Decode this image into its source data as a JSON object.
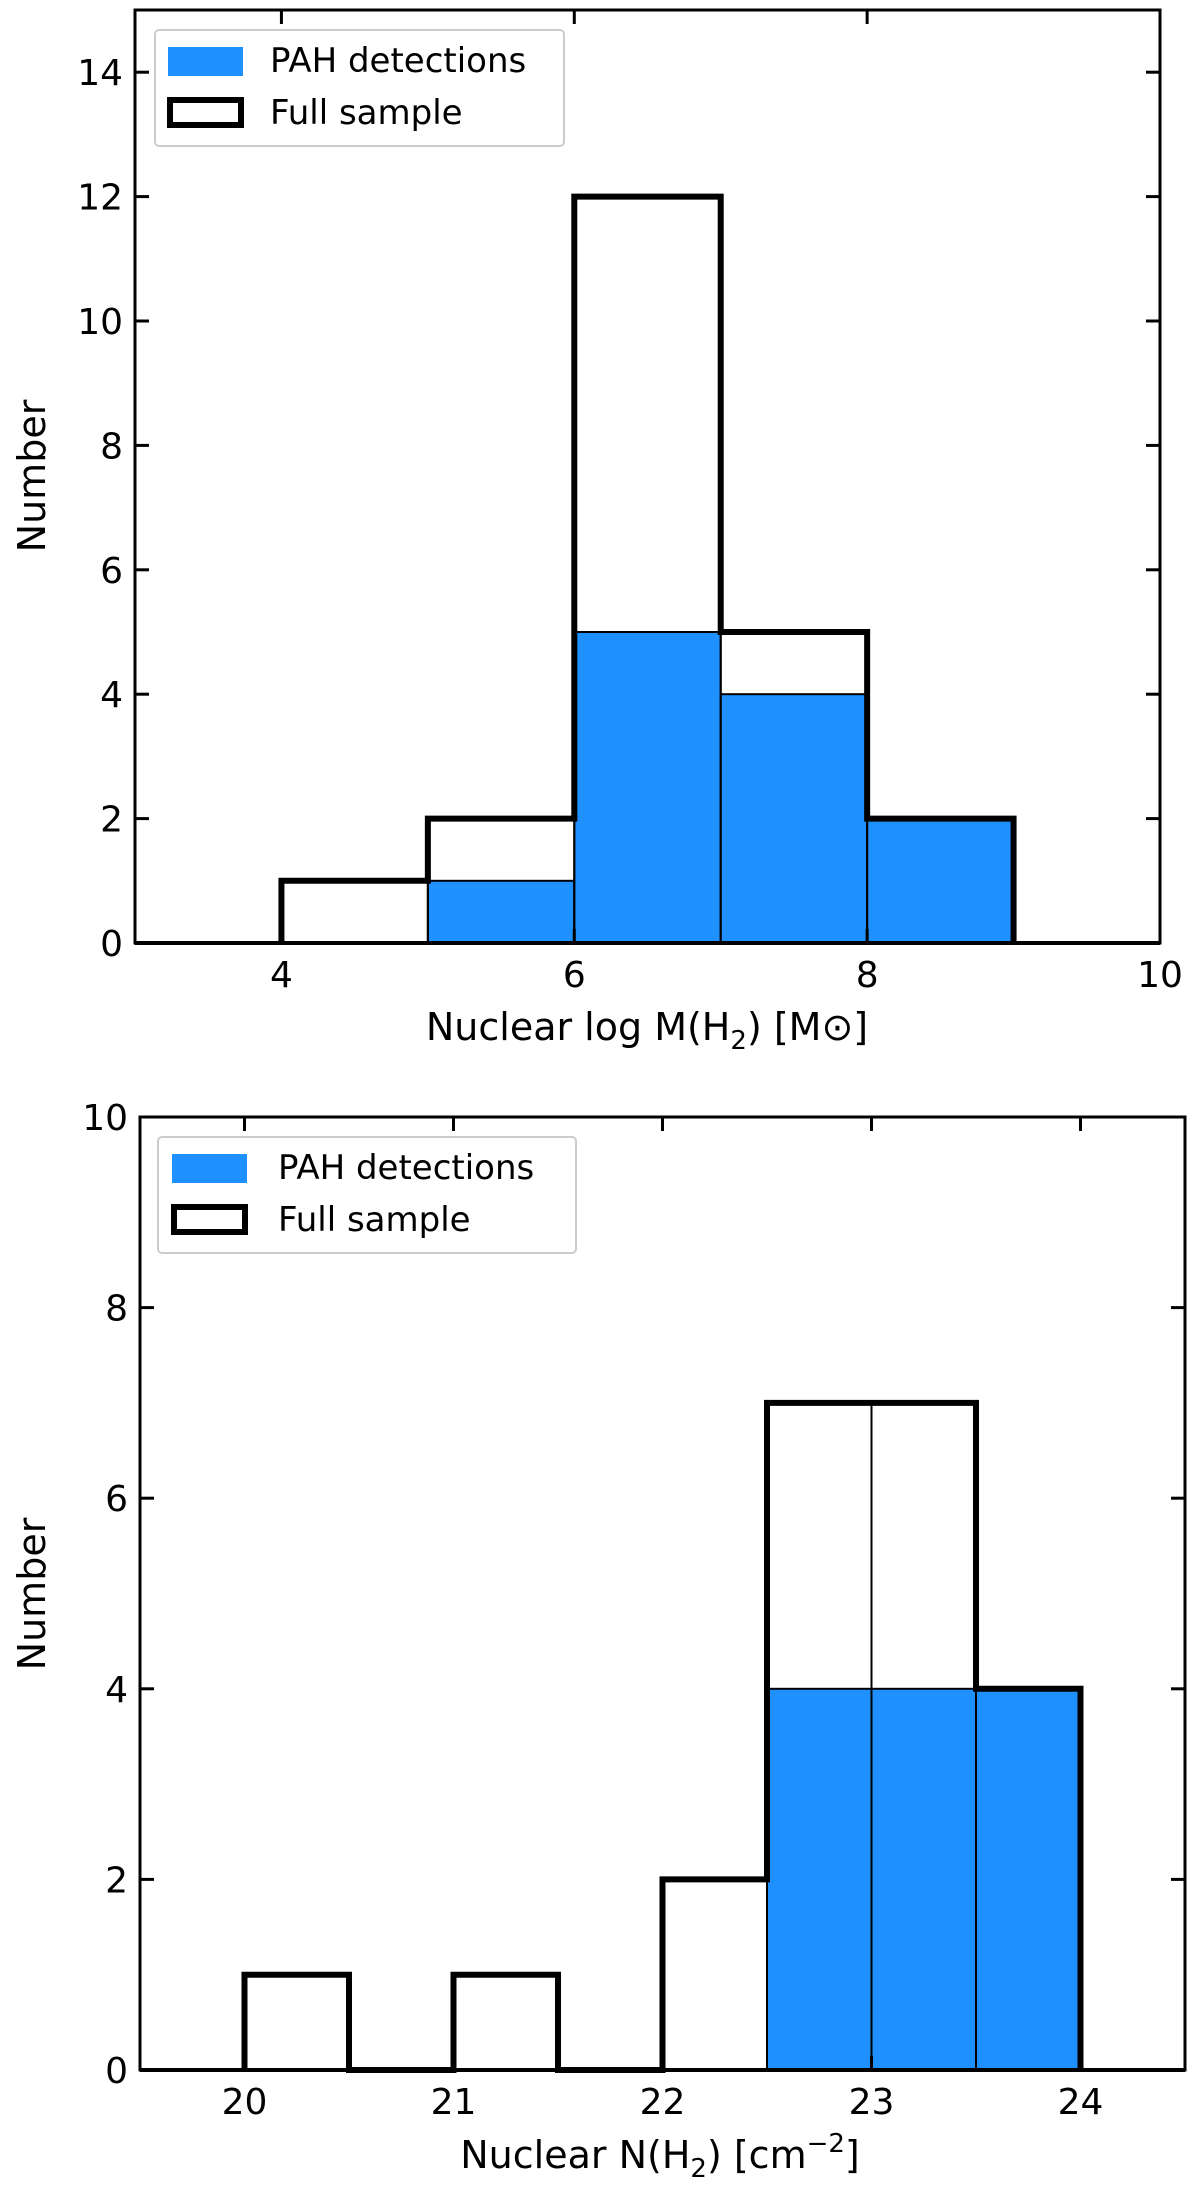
{
  "colors": {
    "pah_fill": "#1e90ff",
    "outline": "#000000",
    "background": "#ffffff",
    "legend_border": "#cccccc"
  },
  "chart_data": [
    {
      "type": "bar",
      "subtype": "histogram",
      "title": "",
      "xlabel": "Nuclear log M(H",
      "xlabel_sub": "2",
      "xlabel_suffix": ") [M⊙]",
      "ylabel": "Number",
      "xlim": [
        3,
        10
      ],
      "ylim": [
        0,
        15
      ],
      "xticks": [
        4,
        6,
        8,
        10
      ],
      "yticks": [
        0,
        2,
        4,
        6,
        8,
        10,
        12,
        14
      ],
      "bin_edges": [
        4,
        5,
        6,
        7,
        8,
        9
      ],
      "series": [
        {
          "name": "PAH detections",
          "style": "filled",
          "values": [
            0,
            1,
            5,
            4,
            2
          ]
        },
        {
          "name": "Full sample",
          "style": "step-outline",
          "values": [
            1,
            2,
            12,
            5,
            2
          ]
        }
      ],
      "legend": {
        "position": "top-left",
        "entries": [
          "PAH detections",
          "Full sample"
        ]
      }
    },
    {
      "type": "bar",
      "subtype": "histogram",
      "title": "",
      "xlabel": "Nuclear N(H",
      "xlabel_sub": "2",
      "xlabel_suffix": ") [cm",
      "xlabel_sup": "−2",
      "xlabel_end": "]",
      "ylabel": "Number",
      "xlim": [
        19.5,
        24.5
      ],
      "ylim": [
        0,
        10
      ],
      "xticks": [
        20,
        21,
        22,
        23,
        24
      ],
      "yticks": [
        0,
        2,
        4,
        6,
        8,
        10
      ],
      "bin_edges": [
        20,
        20.5,
        21,
        21.5,
        22,
        22.5,
        23,
        23.5,
        24
      ],
      "series": [
        {
          "name": "PAH detections",
          "style": "filled",
          "values": [
            0,
            0,
            0,
            0,
            0,
            4,
            4,
            4
          ]
        },
        {
          "name": "Full sample",
          "style": "step-outline",
          "values": [
            1,
            0,
            1,
            0,
            2,
            7,
            7,
            4
          ]
        }
      ],
      "legend": {
        "position": "top-left",
        "entries": [
          "PAH detections",
          "Full sample"
        ]
      }
    }
  ]
}
